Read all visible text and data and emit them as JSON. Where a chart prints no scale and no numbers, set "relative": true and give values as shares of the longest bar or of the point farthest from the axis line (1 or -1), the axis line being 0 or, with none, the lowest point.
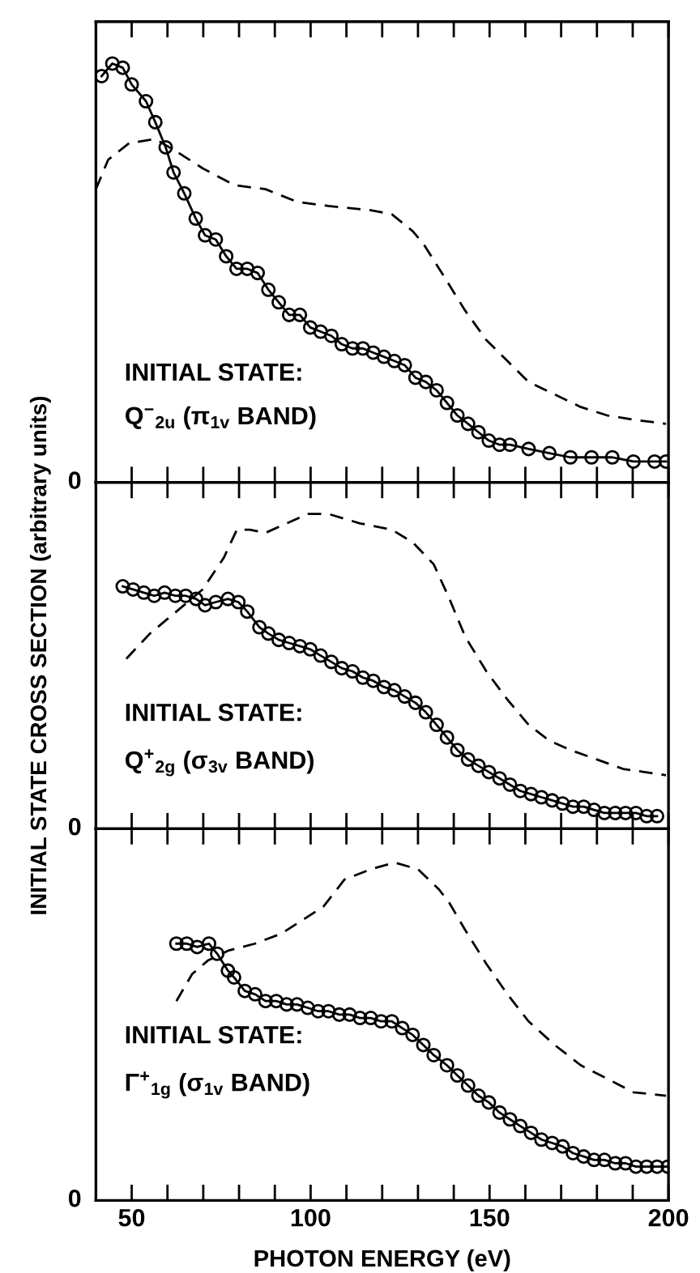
{
  "chart_data": [
    {
      "type": "line",
      "relative": true,
      "xlim": [
        40,
        200
      ],
      "xticks": [
        50,
        {
          "value": 60,
          "label": null
        },
        {
          "value": 70,
          "label": null
        },
        {
          "value": 80,
          "label": null
        },
        {
          "value": 90,
          "label": null
        },
        100,
        {
          "value": 110,
          "label": null
        },
        {
          "value": 120,
          "label": null
        },
        {
          "value": 130,
          "label": null
        },
        {
          "value": 140,
          "label": null
        },
        150,
        {
          "value": 160,
          "label": null
        },
        {
          "value": 170,
          "label": null
        },
        {
          "value": 180,
          "label": null
        },
        {
          "value": 190,
          "label": null
        },
        200
      ],
      "tick_labels": false,
      "annotations": [
        "INITIAL STATE:",
        "Q$^{−}$$_{2u}$ (π$_{1v}$ BAND)",
        "0"
      ],
      "series": [
        {
          "color": "#000000",
          "marker": "circle",
          "line_style": "solid",
          "x": [
            41.6,
            44.6,
            47.5,
            50,
            54,
            56.6,
            59.5,
            61.7,
            64.7,
            67.9,
            70.5,
            73.5,
            76.4,
            79.3,
            82.3,
            85.2,
            88.2,
            91.1,
            94,
            97,
            99.9,
            102.8,
            105.8,
            108.7,
            111.7,
            114.6,
            117.5,
            120.5,
            123.4,
            126.3,
            129.3,
            132.2,
            135.2,
            138.1,
            141,
            144,
            146.9,
            149.8,
            152.8,
            155.7,
            160.9,
            166.7,
            172.6,
            178.5,
            184.3,
            190.2,
            196.1,
            199.3
          ],
          "values": [
            0.97,
            1,
            0.99,
            0.95,
            0.91,
            0.86,
            0.8,
            0.74,
            0.69,
            0.63,
            0.59,
            0.58,
            0.54,
            0.51,
            0.51,
            0.5,
            0.46,
            0.43,
            0.4,
            0.4,
            0.37,
            0.36,
            0.35,
            0.33,
            0.32,
            0.32,
            0.31,
            0.3,
            0.29,
            0.28,
            0.25,
            0.24,
            0.22,
            0.19,
            0.16,
            0.14,
            0.12,
            0.1,
            0.09,
            0.09,
            0.08,
            0.07,
            0.06,
            0.06,
            0.06,
            0.05,
            0.05,
            0.05
          ]
        },
        {
          "color": "#000000",
          "marker": "none",
          "line_style": "dashed",
          "x": [
            40,
            43.4,
            49.3,
            56.6,
            62.5,
            69.8,
            78.6,
            87.4,
            96.2,
            105,
            116.8,
            122.7,
            128.5,
            131.5,
            137.4,
            143.2,
            149.1,
            155,
            160.9,
            168.2,
            175.5,
            182.9,
            190.2,
            199.3
          ],
          "values": [
            0.7,
            0.77,
            0.81,
            0.82,
            0.79,
            0.75,
            0.71,
            0.7,
            0.67,
            0.66,
            0.65,
            0.64,
            0.6,
            0.57,
            0.49,
            0.41,
            0.34,
            0.29,
            0.24,
            0.21,
            0.18,
            0.16,
            0.15,
            0.14
          ]
        }
      ]
    },
    {
      "type": "line",
      "relative": true,
      "xlim": [
        40,
        200
      ],
      "xticks": [
        50,
        {
          "value": 60,
          "label": null
        },
        {
          "value": 70,
          "label": null
        },
        {
          "value": 80,
          "label": null
        },
        {
          "value": 90,
          "label": null
        },
        100,
        {
          "value": 110,
          "label": null
        },
        {
          "value": 120,
          "label": null
        },
        {
          "value": 130,
          "label": null
        },
        {
          "value": 140,
          "label": null
        },
        150,
        {
          "value": 160,
          "label": null
        },
        {
          "value": 170,
          "label": null
        },
        {
          "value": 180,
          "label": null
        },
        {
          "value": 190,
          "label": null
        },
        200
      ],
      "tick_labels": false,
      "ylabel": "INITIAL STATE CROSS SECTION (arbitrary units)",
      "annotations": [
        "INITIAL STATE:",
        "Q$^{+}$$_{2g}$ (σ$_{3v}$ BAND)",
        "0"
      ],
      "series": [
        {
          "color": "#000000",
          "marker": "circle",
          "line_style": "solid",
          "x": [
            47.5,
            50.4,
            53.4,
            56.3,
            59.2,
            62.2,
            65.1,
            68,
            70.5,
            73.5,
            76.9,
            79.8,
            82.3,
            85.7,
            88.2,
            91.1,
            94,
            97,
            99.9,
            102.8,
            105.8,
            108.7,
            111.7,
            114.6,
            117.5,
            120.5,
            123.4,
            126.3,
            129.3,
            132.2,
            135.2,
            138.1,
            141,
            144,
            146.9,
            149.8,
            152.8,
            155.7,
            158.6,
            161.6,
            164.5,
            167.5,
            170.4,
            173.3,
            176.3,
            179.2,
            182.1,
            185.1,
            188,
            190.9,
            193.9,
            196.8
          ],
          "values": [
            0.77,
            0.76,
            0.75,
            0.74,
            0.75,
            0.74,
            0.74,
            0.73,
            0.71,
            0.72,
            0.73,
            0.72,
            0.69,
            0.64,
            0.62,
            0.6,
            0.59,
            0.58,
            0.57,
            0.55,
            0.53,
            0.51,
            0.5,
            0.48,
            0.47,
            0.45,
            0.44,
            0.42,
            0.4,
            0.37,
            0.33,
            0.29,
            0.25,
            0.22,
            0.2,
            0.18,
            0.16,
            0.14,
            0.12,
            0.11,
            0.1,
            0.09,
            0.08,
            0.07,
            0.07,
            0.06,
            0.05,
            0.05,
            0.05,
            0.05,
            0.04,
            0.04
          ]
        },
        {
          "color": "#000000",
          "marker": "none",
          "line_style": "dashed",
          "x": [
            48.5,
            55.1,
            62.5,
            69.8,
            75.7,
            79.4,
            83,
            87.4,
            93.3,
            99.2,
            105,
            113.8,
            122.7,
            128.5,
            134.4,
            138.8,
            143.2,
            149.1,
            155,
            160.9,
            166.7,
            172.6,
            180,
            187.3,
            199.3
          ],
          "values": [
            0.54,
            0.62,
            0.69,
            0.76,
            0.86,
            0.95,
            0.95,
            0.94,
            0.97,
            1,
            1.0,
            0.97,
            0.95,
            0.91,
            0.84,
            0.73,
            0.61,
            0.5,
            0.41,
            0.33,
            0.28,
            0.25,
            0.22,
            0.19,
            0.17
          ]
        }
      ]
    },
    {
      "type": "line",
      "relative": true,
      "xlim": [
        40,
        200
      ],
      "xticks": [
        50,
        {
          "value": 60,
          "label": null
        },
        {
          "value": 70,
          "label": null
        },
        {
          "value": 80,
          "label": null
        },
        {
          "value": 90,
          "label": null
        },
        100,
        {
          "value": 110,
          "label": null
        },
        {
          "value": 120,
          "label": null
        },
        {
          "value": 130,
          "label": null
        },
        {
          "value": 140,
          "label": null
        },
        150,
        {
          "value": 160,
          "label": null
        },
        {
          "value": 170,
          "label": null
        },
        {
          "value": 180,
          "label": null
        },
        {
          "value": 190,
          "label": null
        },
        200
      ],
      "xlabel": "PHOTON ENERGY (eV)",
      "annotations": [
        "INITIAL STATE:",
        "Γ$^{+}$$_{1g}$ (σ$_{1v}$ BAND)",
        "0"
      ],
      "series": [
        {
          "color": "#000000",
          "marker": "circle",
          "line_style": "solid",
          "x": [
            62.5,
            65.4,
            68.3,
            71.6,
            73.9,
            76.9,
            78.6,
            81.6,
            84.5,
            87.4,
            90.4,
            93.3,
            96.2,
            99.2,
            102.1,
            105,
            108,
            110.9,
            113.8,
            116.8,
            119.7,
            122.7,
            125.6,
            128.5,
            131.5,
            134.4,
            138.1,
            141,
            144,
            146.9,
            149.8,
            152.8,
            155.7,
            158.6,
            161.6,
            164.5,
            167.5,
            170.4,
            173.3,
            176.3,
            179.2,
            182.1,
            185.1,
            188,
            190.9,
            193.9,
            196.8,
            199.8
          ],
          "values": [
            0.76,
            0.76,
            0.75,
            0.76,
            0.73,
            0.68,
            0.66,
            0.62,
            0.61,
            0.59,
            0.59,
            0.58,
            0.58,
            0.57,
            0.56,
            0.56,
            0.55,
            0.55,
            0.54,
            0.54,
            0.53,
            0.53,
            0.51,
            0.49,
            0.46,
            0.43,
            0.4,
            0.37,
            0.34,
            0.31,
            0.29,
            0.26,
            0.24,
            0.22,
            0.2,
            0.18,
            0.17,
            0.16,
            0.14,
            0.13,
            0.12,
            0.12,
            0.11,
            0.11,
            0.1,
            0.1,
            0.1,
            0.1
          ]
        },
        {
          "color": "#000000",
          "marker": "none",
          "line_style": "dashed",
          "x": [
            62.5,
            66.9,
            71.3,
            77.2,
            84.5,
            91.9,
            97.8,
            103.6,
            109.5,
            116.8,
            123.4,
            130,
            135.9,
            138.8,
            143.2,
            149.1,
            155,
            160.9,
            168.2,
            175.5,
            182.9,
            190.2,
            199.3
          ],
          "values": [
            0.59,
            0.67,
            0.71,
            0.74,
            0.76,
            0.79,
            0.83,
            0.87,
            0.95,
            0.98,
            1,
            0.98,
            0.92,
            0.88,
            0.8,
            0.7,
            0.61,
            0.53,
            0.46,
            0.4,
            0.36,
            0.32,
            0.31
          ]
        }
      ]
    }
  ]
}
